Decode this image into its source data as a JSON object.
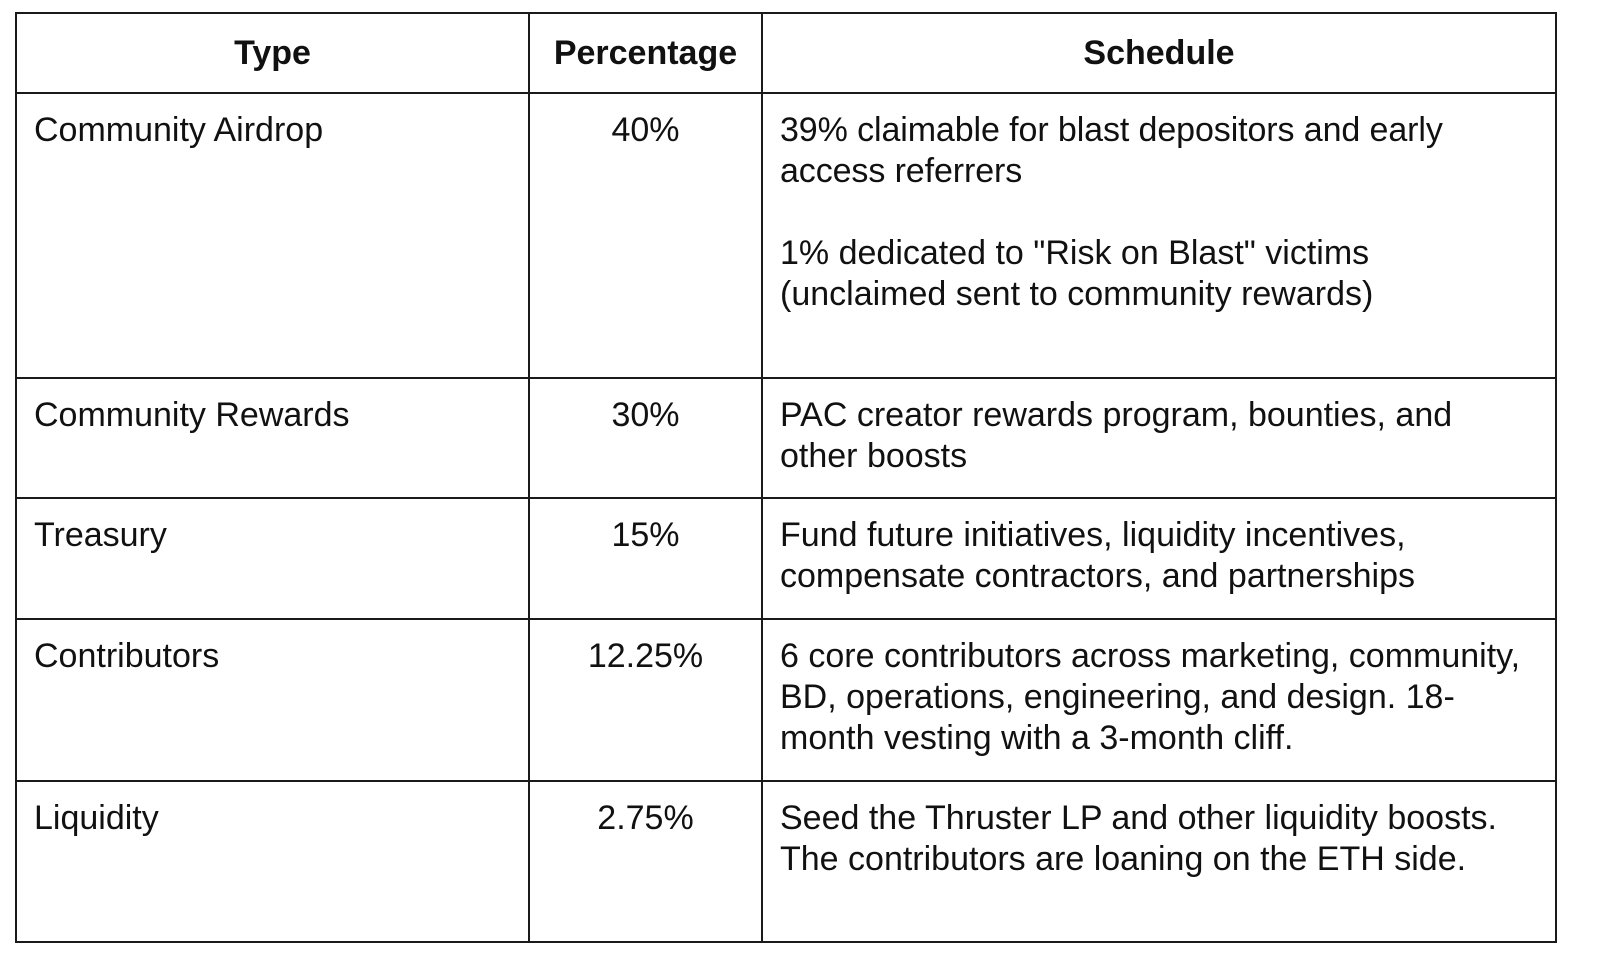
{
  "table": {
    "headers": [
      "Type",
      "Percentage",
      "Schedule"
    ],
    "rows": [
      {
        "type": "Community Airdrop",
        "percentage": "40%",
        "schedule": [
          "39% claimable for blast depositors and early access referrers",
          "1% dedicated to \"Risk on Blast\" victims (unclaimed sent to community rewards)"
        ]
      },
      {
        "type": "Community Rewards",
        "percentage": "30%",
        "schedule": [
          "PAC creator rewards program, bounties, and other boosts"
        ]
      },
      {
        "type": "Treasury",
        "percentage": "15%",
        "schedule": [
          "Fund future initiatives, liquidity incentives, compensate contractors, and partnerships"
        ]
      },
      {
        "type": "Contributors",
        "percentage": "12.25%",
        "schedule": [
          "6 core contributors across marketing, community, BD, operations, engineering, and design. 18-month vesting with a 3-month cliff."
        ]
      },
      {
        "type": "Liquidity",
        "percentage": "2.75%",
        "schedule": [
          "Seed the Thruster LP and other liquidity boosts. The contributors are loaning on the ETH side."
        ]
      }
    ]
  }
}
